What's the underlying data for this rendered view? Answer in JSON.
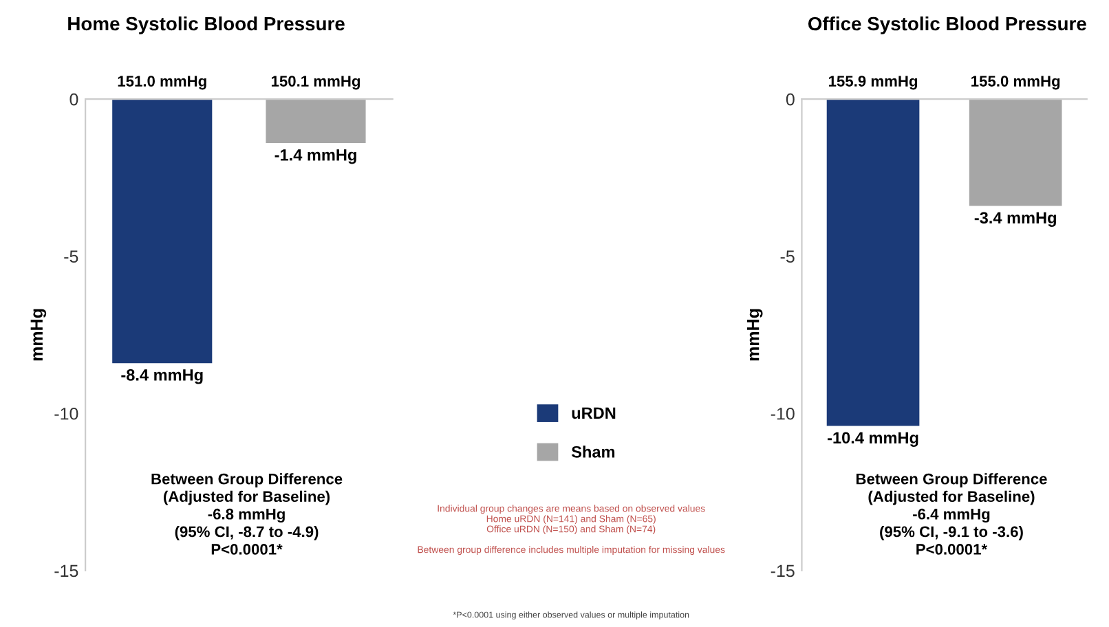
{
  "chart_data": [
    {
      "type": "bar",
      "title": "Home Systolic Blood Pressure",
      "ylabel": "mmHg",
      "categories": [
        null,
        null
      ],
      "series": [
        {
          "name": "uRDN",
          "color": "#1b3a78",
          "values": [
            -8.4,
            null
          ],
          "value_labels": [
            "-8.4 mmHg",
            null
          ]
        },
        {
          "name": "Sham",
          "color": "#a6a6a6",
          "values": [
            null,
            -1.4
          ],
          "value_labels": [
            null,
            "-1.4 mmHg"
          ]
        }
      ],
      "ylim": [
        -15,
        0
      ],
      "yticks": [
        0,
        -5,
        -10,
        -15
      ],
      "grid": false,
      "legend": "right",
      "annotations": [
        "151.0 mmHg",
        "150.1 mmHg",
        "Between Group Difference\n(Adjusted for Baseline)\n-6.8 mmHg\n(95% CI, -8.7 to -4.9)\nP<0.0001*",
        "Individual group changes are means based on observed values\nHome uRDN (N=141) and Sham (N=65)\nOffice uRDN (N=150) and Sham (N=74)\n\nBetween group difference includes multiple imputation for missing values",
        "*P<0.0001 using either observed values or multiple imputation"
      ]
    },
    {
      "type": "bar",
      "title": "Office Systolic Blood Pressure",
      "ylabel": "mmHg",
      "categories": [
        null,
        null
      ],
      "series": [
        {
          "color": "#1b3a78",
          "values": [
            -10.4,
            null
          ],
          "value_labels": [
            "-10.4 mmHg",
            null
          ]
        },
        {
          "color": "#a6a6a6",
          "values": [
            null,
            -3.4
          ],
          "value_labels": [
            null,
            "-3.4 mmHg"
          ]
        }
      ],
      "ylim": [
        -15,
        0
      ],
      "yticks": [
        0,
        -5,
        -10,
        -15
      ],
      "grid": false,
      "annotations": [
        "155.9 mmHg",
        "155.0 mmHg",
        "Between Group Difference\n(Adjusted for Baseline)\n-6.4 mmHg\n(95% CI, -9.1 to -3.6)\nP<0.0001*"
      ]
    }
  ]
}
